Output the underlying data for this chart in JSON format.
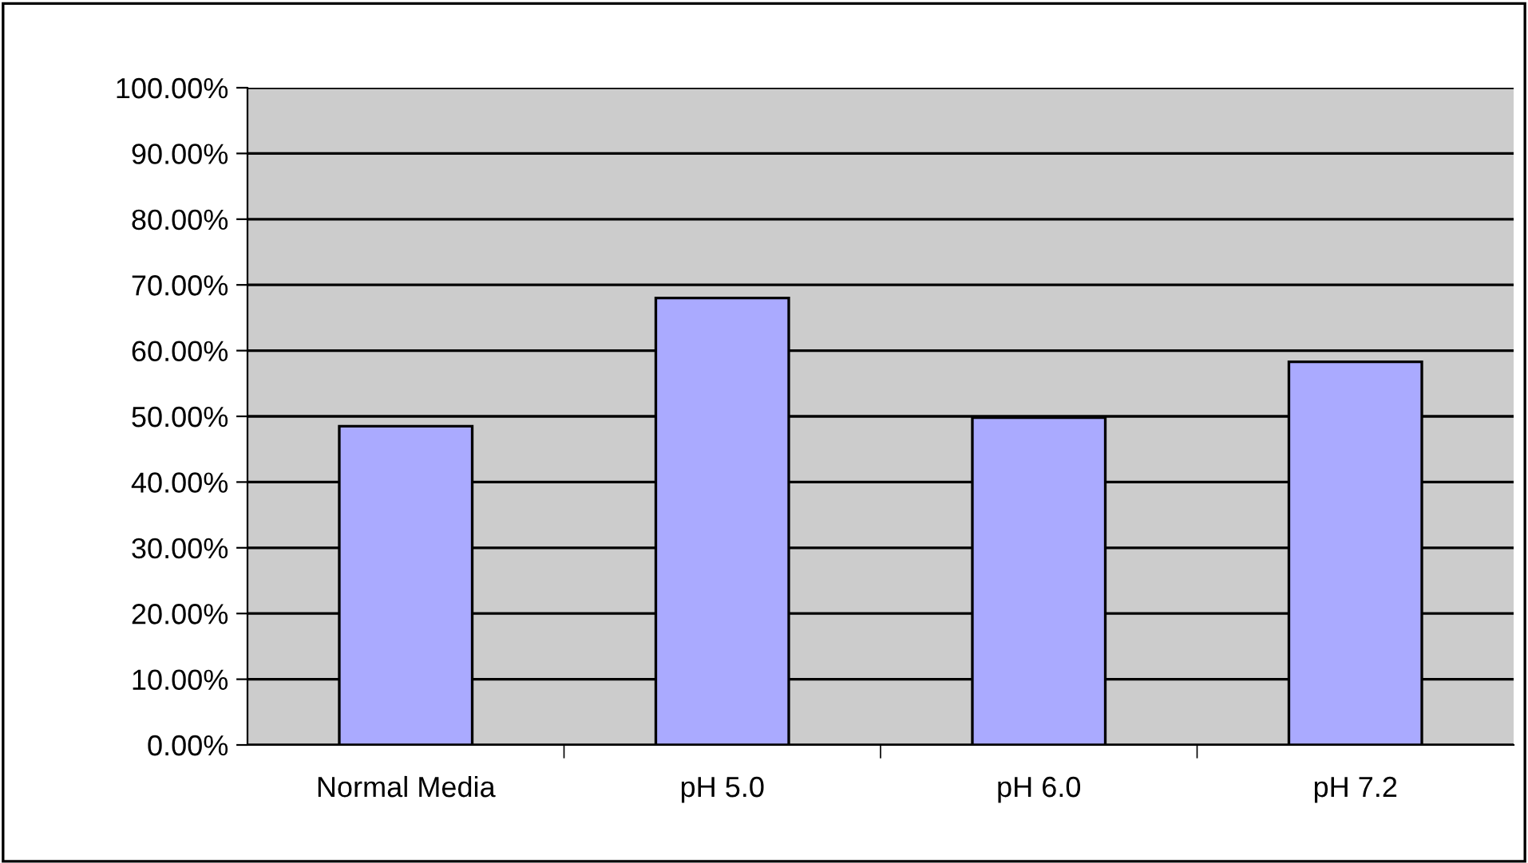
{
  "chart_data": {
    "type": "bar",
    "categories": [
      "Normal Media",
      "pH 5.0",
      "pH 6.0",
      "pH 7.2"
    ],
    "values": [
      48.5,
      68,
      49.8,
      58.3
    ],
    "color": "#aaaaff",
    "ylim": [
      0,
      100
    ],
    "yticks": [
      {
        "value": 0,
        "label": "0.00%"
      },
      {
        "value": 10,
        "label": "10.00%"
      },
      {
        "value": 20,
        "label": "20.00%"
      },
      {
        "value": 30,
        "label": "30.00%"
      },
      {
        "value": 40,
        "label": "40.00%"
      },
      {
        "value": 50,
        "label": "50.00%"
      },
      {
        "value": 60,
        "label": "60.00%"
      },
      {
        "value": 70,
        "label": "70.00%"
      },
      {
        "value": 80,
        "label": "80.00%"
      },
      {
        "value": 90,
        "label": "90.00%"
      },
      {
        "value": 100,
        "label": "100.00%"
      }
    ],
    "grid": "y",
    "legend": false
  }
}
